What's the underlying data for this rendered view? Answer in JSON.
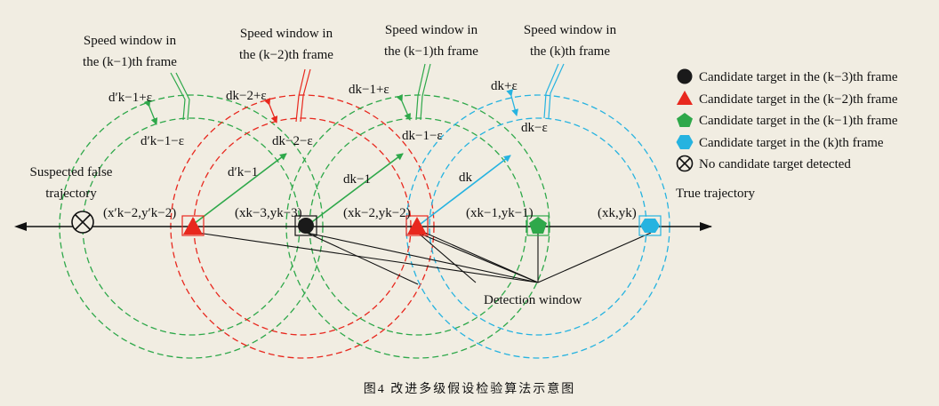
{
  "labels": {
    "sw_km1_left": [
      "Speed window in",
      "the (k−1)th frame"
    ],
    "sw_km2": [
      "Speed window in",
      "the (k−2)th frame"
    ],
    "sw_km1_right": [
      "Speed window in",
      "the (k−1)th frame"
    ],
    "sw_k": [
      "Speed window in",
      "the (k)th frame"
    ],
    "suspected": [
      "Suspected false",
      "trajectory"
    ],
    "true_traj": "True trajectory",
    "detection": "Detection window"
  },
  "math": {
    "dpk1_plus": "d′k−1+ε",
    "dpk1_minus": "d′k−1−ε",
    "dk2_plus": "dk−2+ε",
    "dk2_minus": "dk−2−ε",
    "dk1_plus": "dk−1+ε",
    "dk1_minus": "dk−1−ε",
    "dk_plus": "dk+ε",
    "dk_minus": "dk−ε",
    "dpk1": "d′k−1",
    "dk1": "dk−1",
    "dk": "dk",
    "c_pk2": "(x′k−2,y′k−2)",
    "c_k3": "(xk−3,yk−3)",
    "c_k2": "(xk−2,yk−2)",
    "c_k1": "(xk−1,yk−1)",
    "c_k": "(xk,yk)"
  },
  "legend": [
    {
      "text": "Candidate target in the (k−3)th frame",
      "color": "#1a1a1a",
      "shape": "circle"
    },
    {
      "text": "Candidate target in the (k−2)th frame",
      "color": "#e8281e",
      "shape": "triangle"
    },
    {
      "text": "Candidate target in the (k−1)th frame",
      "color": "#2ea84a",
      "shape": "pentagon"
    },
    {
      "text": "Candidate target in the (k)th frame",
      "color": "#26b3e0",
      "shape": "hexagon"
    },
    {
      "text": "No candidate target detected",
      "color": "#111111",
      "shape": "crossed-circle"
    }
  ],
  "caption": "图4  改进多级假设检验算法示意图",
  "colors": {
    "green": "#2ea84a",
    "red": "#e8281e",
    "cyan": "#26b3e0",
    "black": "#1a1a1a",
    "background": "#f1ede2"
  }
}
